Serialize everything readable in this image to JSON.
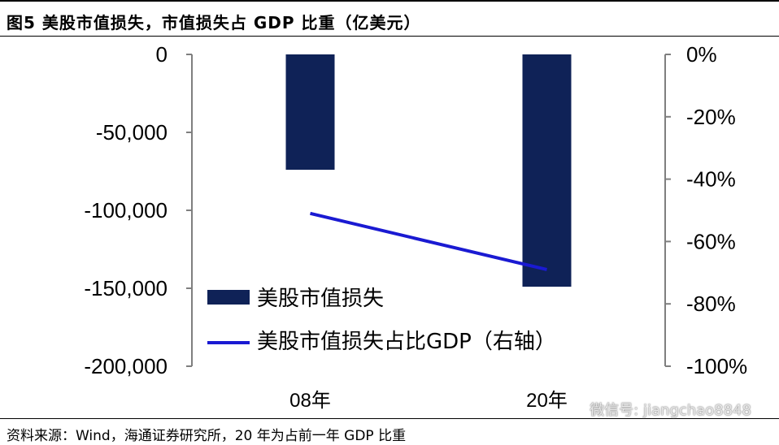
{
  "title": "图5  美股市值损失，市值损失占 GDP 比重（亿美元）",
  "source": "资料来源：Wind，海通证券研究所，20 年为占前一年 GDP 比重",
  "watermark": "微信号: jiangchao8848",
  "colors": {
    "bar": "#0f2257",
    "line": "#1a1ad2",
    "axis": "#7f7f7f"
  },
  "chart_data": {
    "type": "bar",
    "categories": [
      "08年",
      "20年"
    ],
    "series": [
      {
        "name": "美股市值损失",
        "kind": "bar",
        "axis": "left",
        "values": [
          -74000,
          -149000
        ]
      },
      {
        "name": "美股市值损失占比GDP（右轴）",
        "kind": "line",
        "axis": "right",
        "values": [
          -51,
          -69
        ]
      }
    ],
    "y_left": {
      "lim": [
        -200000,
        0
      ],
      "ticks": [
        0,
        -50000,
        -100000,
        -150000,
        -200000
      ],
      "tick_labels": [
        "0",
        "-50,000",
        "-100,000",
        "-150,000",
        "-200,000"
      ]
    },
    "y_right": {
      "lim": [
        -100,
        0
      ],
      "ticks": [
        0,
        -20,
        -40,
        -60,
        -80,
        -100
      ],
      "tick_labels": [
        "0%",
        "-20%",
        "-40%",
        "-60%",
        "-80%",
        "-100%"
      ]
    },
    "legend_position": "bottom-left",
    "grid": false
  }
}
